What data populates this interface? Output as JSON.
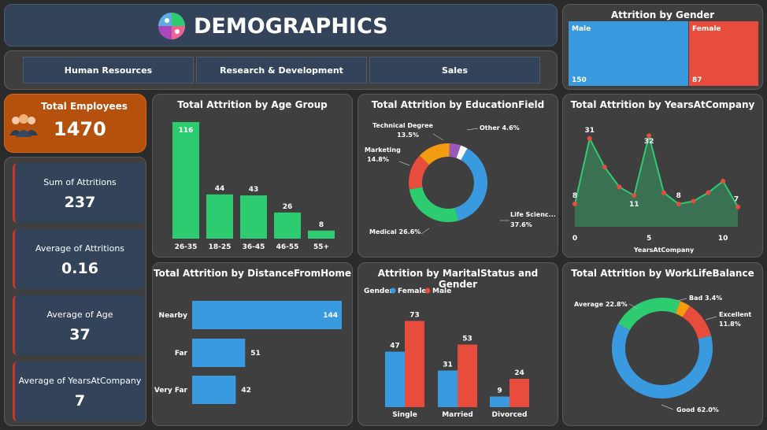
{
  "header": {
    "title": "DEMOGRAPHICS",
    "icon": "demographics-logo-icon"
  },
  "tabs": [
    {
      "label": "Human Resources"
    },
    {
      "label": "Research & Development"
    },
    {
      "label": "Sales"
    }
  ],
  "total_employees": {
    "label": "Total Employees",
    "value": "1470",
    "icon": "people-group-icon"
  },
  "kpis": [
    {
      "label": "Sum of Attritions",
      "value": "237"
    },
    {
      "label": "Average of Attritions",
      "value": "0.16"
    },
    {
      "label": "Average of Age",
      "value": "37"
    },
    {
      "label": "Average of YearsAtCompany",
      "value": "7"
    }
  ],
  "colors": {
    "green": "#2ecc71",
    "blue": "#3a9ae0",
    "red": "#e74c3c",
    "orange": "#f39c12",
    "purple": "#9b59b6",
    "kpi_orange": "#b5500d"
  },
  "chart_data": [
    {
      "id": "attrition-by-gender",
      "type": "treemap",
      "title": "Attrition by Gender",
      "items": [
        {
          "name": "Male",
          "value": 150
        },
        {
          "name": "Female",
          "value": 87
        }
      ]
    },
    {
      "id": "attrition-by-age-group",
      "type": "bar",
      "title": "Total Attrition by Age Group",
      "categories": [
        "26-35",
        "18-25",
        "36-45",
        "46-55",
        "55+"
      ],
      "values": [
        116,
        44,
        43,
        26,
        8
      ]
    },
    {
      "id": "attrition-by-education-field",
      "type": "pie",
      "title": "Total Attrition by EducationField",
      "slices": [
        {
          "name": "Life Scienc...",
          "value": 37.6,
          "label": "37.6%"
        },
        {
          "name": "Medical",
          "value": 26.6,
          "label": "26.6%"
        },
        {
          "name": "Marketing",
          "value": 14.8,
          "label": "14.8%"
        },
        {
          "name": "Technical Degree",
          "value": 13.5,
          "label": "13.5%"
        },
        {
          "name": "Other",
          "value": 4.6,
          "label": "4.6%"
        },
        {
          "name": "",
          "value": 2.9,
          "label": ""
        }
      ]
    },
    {
      "id": "attrition-by-years-at-company",
      "type": "area",
      "title": "Total Attrition by YearsAtCompany",
      "xlabel": "YearsAtCompany",
      "x": [
        0,
        1,
        2,
        3,
        4,
        5,
        6,
        7,
        8,
        9,
        10,
        11
      ],
      "values": [
        8,
        31,
        21,
        14,
        11,
        32,
        12,
        8,
        9,
        12,
        16,
        7
      ],
      "labeled_points": [
        {
          "x": 0,
          "label": "8"
        },
        {
          "x": 1,
          "label": "31"
        },
        {
          "x": 4,
          "label": "11"
        },
        {
          "x": 5,
          "label": "32"
        },
        {
          "x": 7,
          "label": "8"
        },
        {
          "x": 11,
          "label": "7"
        }
      ],
      "xticks": [
        0,
        5,
        10
      ]
    },
    {
      "id": "attrition-by-distance-from-home",
      "type": "bar",
      "orientation": "horizontal",
      "title": "Total Attrition by DistanceFromHome",
      "categories": [
        "Nearby",
        "Far",
        "Very Far"
      ],
      "values": [
        144,
        51,
        42
      ]
    },
    {
      "id": "attrition-by-marital-status-gender",
      "type": "bar",
      "title": "Attrition by MaritalStatus and Gender",
      "legend_title": "Gender",
      "categories": [
        "Single",
        "Married",
        "Divorced"
      ],
      "series": [
        {
          "name": "Female",
          "values": [
            47,
            31,
            9
          ]
        },
        {
          "name": "Male",
          "values": [
            73,
            53,
            24
          ]
        }
      ]
    },
    {
      "id": "attrition-by-work-life-balance",
      "type": "pie",
      "title": "Total Attrition by WorkLifeBalance",
      "slices": [
        {
          "name": "Good",
          "value": 62.0,
          "label": "62.0%"
        },
        {
          "name": "Average",
          "value": 22.8,
          "label": "22.8%"
        },
        {
          "name": "Bad",
          "value": 3.4,
          "label": "3.4%"
        },
        {
          "name": "Excellent",
          "value": 11.8,
          "label": "11.8%"
        }
      ]
    }
  ]
}
